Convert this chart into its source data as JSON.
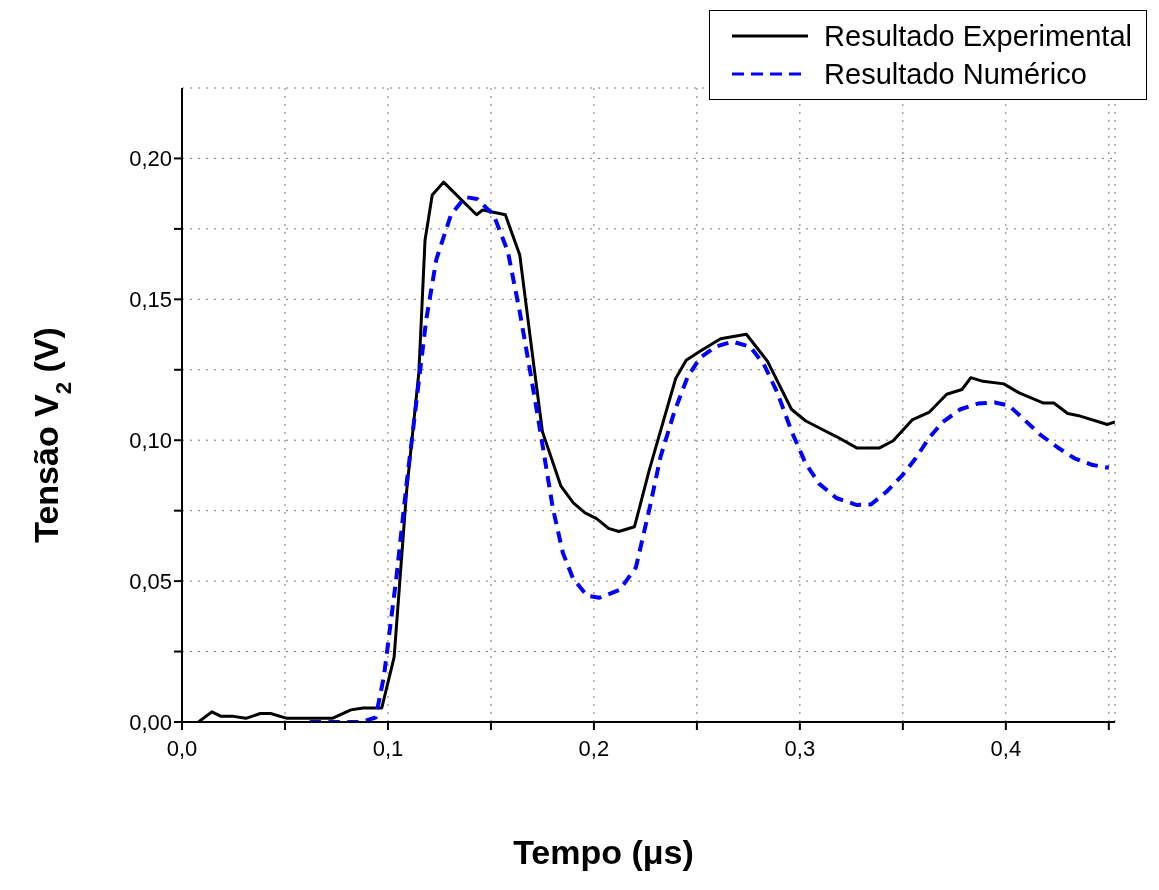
{
  "chart_data": {
    "type": "line",
    "xlabel": "Tempo (μs)",
    "ylabel": "Tensão V$_{2}$ (V)",
    "xlim": [
      0,
      0.453
    ],
    "ylim": [
      0,
      0.225
    ],
    "xticks": [
      {
        "value": 0,
        "label": "0,0"
      },
      {
        "value": 0.05,
        "label": null
      },
      {
        "value": 0.1,
        "label": "0,1"
      },
      {
        "value": 0.15,
        "label": null
      },
      {
        "value": 0.2,
        "label": "0,2"
      },
      {
        "value": 0.25,
        "label": null
      },
      {
        "value": 0.3,
        "label": "0,3"
      },
      {
        "value": 0.35,
        "label": null
      },
      {
        "value": 0.4,
        "label": "0,4"
      },
      {
        "value": 0.45,
        "label": null
      }
    ],
    "yticks": [
      {
        "value": 0,
        "label": "0,00"
      },
      {
        "value": 0.025,
        "label": null
      },
      {
        "value": 0.05,
        "label": "0,05"
      },
      {
        "value": 0.075,
        "label": null
      },
      {
        "value": 0.1,
        "label": "0,10"
      },
      {
        "value": 0.125,
        "label": null
      },
      {
        "value": 0.15,
        "label": "0,15"
      },
      {
        "value": 0.175,
        "label": null
      },
      {
        "value": 0.2,
        "label": "0,20"
      }
    ],
    "grid": true,
    "legend": "top right",
    "series": [
      {
        "name": "Resultado Experimental",
        "color": "#000000",
        "line_style": "solid",
        "x": [
          0.008,
          0.0145,
          0.019,
          0.025,
          0.031,
          0.038,
          0.043,
          0.051,
          0.073,
          0.082,
          0.088,
          0.097,
          0.103,
          0.109,
          0.115,
          0.118,
          0.1215,
          0.127,
          0.143,
          0.146,
          0.157,
          0.164,
          0.171,
          0.175,
          0.184,
          0.19,
          0.1957,
          0.2013,
          0.2071,
          0.2121,
          0.2197,
          0.2271,
          0.2348,
          0.2397,
          0.2448,
          0.2513,
          0.2615,
          0.274,
          0.2843,
          0.2959,
          0.3027,
          0.3109,
          0.3177,
          0.3278,
          0.3385,
          0.3453,
          0.3545,
          0.3629,
          0.3713,
          0.3787,
          0.383,
          0.3889,
          0.399,
          0.4065,
          0.4183,
          0.4233,
          0.43,
          0.4349,
          0.4493,
          0.453
        ],
        "values": [
          0,
          0.0036,
          0.002,
          0.002,
          0.0013,
          0.003,
          0.003,
          0.0013,
          0.0013,
          0.0043,
          0.005,
          0.005,
          0.023,
          0.0815,
          0.124,
          0.171,
          0.187,
          0.1916,
          0.18,
          0.1817,
          0.18,
          0.1657,
          0.1255,
          0.103,
          0.0837,
          0.0778,
          0.0742,
          0.0722,
          0.0687,
          0.0676,
          0.0693,
          0.09,
          0.1095,
          0.1219,
          0.1284,
          0.1315,
          0.136,
          0.1376,
          0.128,
          0.111,
          0.1069,
          0.1038,
          0.1013,
          0.0972,
          0.0972,
          0.0998,
          0.1072,
          0.11,
          0.1163,
          0.118,
          0.1222,
          0.1209,
          0.12,
          0.1168,
          0.1132,
          0.1132,
          0.1095,
          0.1088,
          0.1056,
          0.1065
        ]
      },
      {
        "name": "Resultado Numérico",
        "color": "#0000ff",
        "line_style": "dashed",
        "x": [
          0.062,
          0.087,
          0.094,
          0.098,
          0.104,
          0.109,
          0.1138,
          0.1186,
          0.1235,
          0.1306,
          0.1375,
          0.1433,
          0.1513,
          0.1582,
          0.164,
          0.1691,
          0.174,
          0.18,
          0.1849,
          0.1898,
          0.1967,
          0.2027,
          0.2126,
          0.2204,
          0.2271,
          0.2323,
          0.239,
          0.2455,
          0.2515,
          0.2591,
          0.2673,
          0.2758,
          0.2825,
          0.2891,
          0.2959,
          0.3027,
          0.3093,
          0.3177,
          0.3277,
          0.3345,
          0.342,
          0.3496,
          0.3562,
          0.3629,
          0.3694,
          0.378,
          0.3864,
          0.3947,
          0.4015,
          0.4082,
          0.4165,
          0.425,
          0.4333,
          0.4416,
          0.45
        ],
        "values": [
          0,
          0,
          0.0016,
          0.016,
          0.0507,
          0.0843,
          0.1136,
          0.1429,
          0.1642,
          0.18,
          0.1863,
          0.1856,
          0.18,
          0.167,
          0.1455,
          0.1242,
          0.103,
          0.0761,
          0.0601,
          0.051,
          0.0448,
          0.0441,
          0.0469,
          0.0549,
          0.0761,
          0.094,
          0.11,
          0.1225,
          0.1292,
          0.1332,
          0.135,
          0.1332,
          0.127,
          0.1168,
          0.1033,
          0.0919,
          0.0846,
          0.0795,
          0.077,
          0.0772,
          0.0817,
          0.0874,
          0.0936,
          0.101,
          0.1065,
          0.111,
          0.113,
          0.1134,
          0.1123,
          0.1078,
          0.1021,
          0.0975,
          0.0936,
          0.0913,
          0.0902
        ]
      }
    ]
  }
}
